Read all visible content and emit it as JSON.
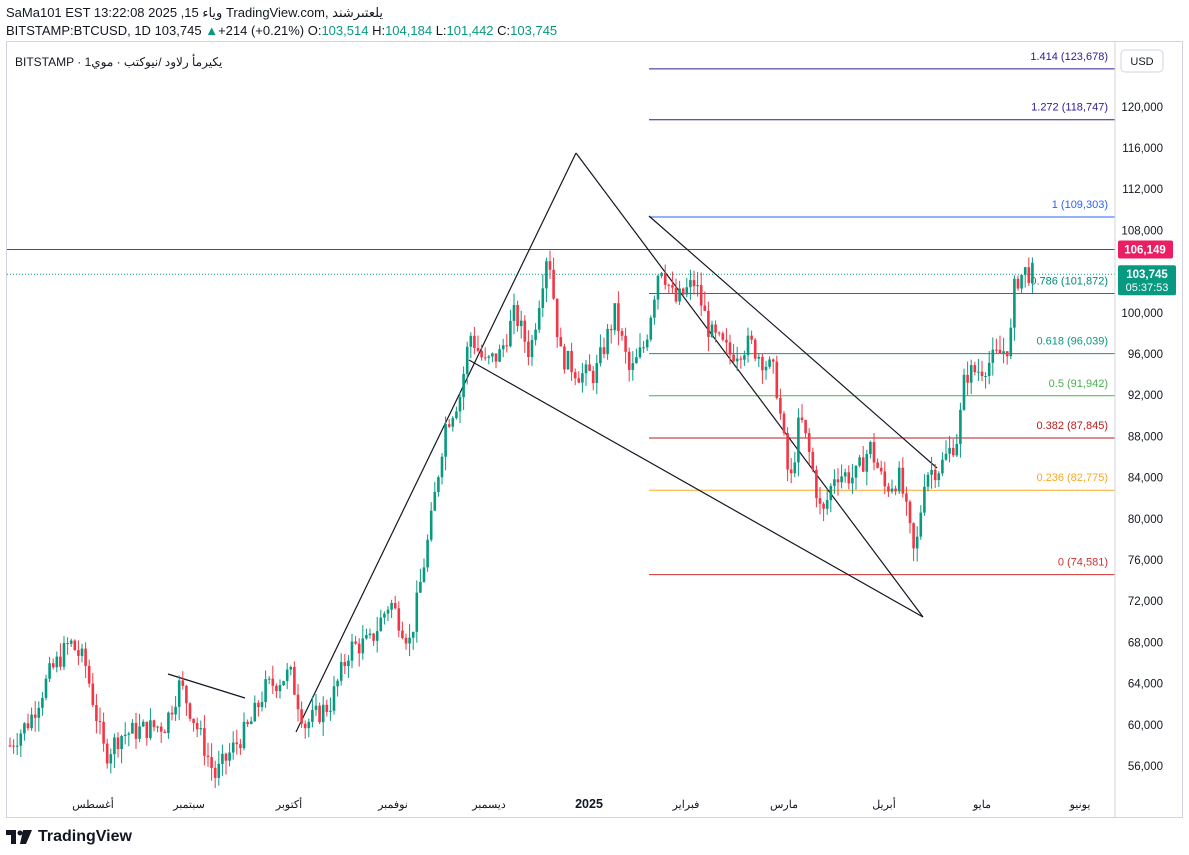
{
  "header": {
    "line1": "SaMa101 EST 13:22:08 2025 ,15 وياء TradingView.com, يلعتىرشند",
    "symbol": "BITSTAMP:BTCUSD, 1D",
    "price": "103,745",
    "change": "+214 (+0.21%)",
    "o_label": "O:",
    "o": "103,514",
    "h_label": "H:",
    "h": "104,184",
    "l_label": "L:",
    "l": "101,442",
    "c_label": "C:",
    "c": "103,745"
  },
  "legend": {
    "text": "BITSTAMP · يكيرمأ رلاود /نيوكتب · موي1"
  },
  "currency": "USD",
  "footer": {
    "brand": "TradingView"
  },
  "colors": {
    "up": "#089981",
    "down": "#f23645",
    "accent": "#e91e63"
  },
  "chart_data": {
    "type": "candlestick",
    "ylim": [
      52000,
      126000
    ],
    "y_ticks": [
      "56,000",
      "60,000",
      "64,000",
      "68,000",
      "72,000",
      "76,000",
      "80,000",
      "84,000",
      "88,000",
      "92,000",
      "96,000",
      "100,000",
      "104,000",
      "108,000",
      "112,000",
      "116,000",
      "120,000"
    ],
    "x_ticks": [
      "أغسطس",
      "سبتمبر",
      "أكتوبر",
      "نوفمبر",
      "ديسمبر",
      "2025",
      "فبراير",
      "مارس",
      "أبريل",
      "مايو",
      "يونيو"
    ],
    "last_price_label": "103,745",
    "countdown": "05:37:53",
    "alert_label": "106,149",
    "fib_levels": [
      {
        "ratio": "1.414",
        "price": 123678,
        "label": "1.414 (123,678)",
        "color": "#311b92"
      },
      {
        "ratio": "1.272",
        "price": 118747,
        "label": "1.272 (118,747)",
        "color": "#311b92"
      },
      {
        "ratio": "1",
        "price": 109303,
        "label": "1 (109,303)",
        "color": "#2962ff"
      },
      {
        "ratio": "0.786",
        "price": 101872,
        "label": "0.786 (101,872)",
        "color": "#00897b"
      },
      {
        "ratio": "0.618",
        "price": 96039,
        "label": "0.618 (96,039)",
        "color": "#089981"
      },
      {
        "ratio": "0.5",
        "price": 91942,
        "label": "0.5 (91,942)",
        "color": "#4caf50"
      },
      {
        "ratio": "0.382",
        "price": 87845,
        "label": "0.382 (87,845)",
        "color": "#b71c1c"
      },
      {
        "ratio": "0.236",
        "price": 82775,
        "label": "0.236 (82,775)",
        "color": "#f9a825"
      },
      {
        "ratio": "0",
        "price": 74581,
        "label": "0 (74,581)",
        "color": "#d32f2f"
      }
    ],
    "anchors": [
      {
        "x": 0,
        "p": 58000
      },
      {
        "x": 20,
        "p": 60500
      },
      {
        "x": 40,
        "p": 65000
      },
      {
        "x": 60,
        "p": 68000
      },
      {
        "x": 75,
        "p": 66000
      },
      {
        "x": 95,
        "p": 57000
      },
      {
        "x": 110,
        "p": 59000
      },
      {
        "x": 130,
        "p": 59500
      },
      {
        "x": 155,
        "p": 60000
      },
      {
        "x": 170,
        "p": 64000
      },
      {
        "x": 190,
        "p": 59000
      },
      {
        "x": 205,
        "p": 55000
      },
      {
        "x": 225,
        "p": 58000
      },
      {
        "x": 240,
        "p": 60000
      },
      {
        "x": 255,
        "p": 63500
      },
      {
        "x": 280,
        "p": 65000
      },
      {
        "x": 295,
        "p": 60000
      },
      {
        "x": 320,
        "p": 62000
      },
      {
        "x": 340,
        "p": 67500
      },
      {
        "x": 360,
        "p": 68000
      },
      {
        "x": 380,
        "p": 72000
      },
      {
        "x": 400,
        "p": 68000
      },
      {
        "x": 420,
        "p": 79000
      },
      {
        "x": 435,
        "p": 89000
      },
      {
        "x": 450,
        "p": 92000
      },
      {
        "x": 460,
        "p": 98000
      },
      {
        "x": 475,
        "p": 95000
      },
      {
        "x": 490,
        "p": 96000
      },
      {
        "x": 505,
        "p": 100000
      },
      {
        "x": 520,
        "p": 96000
      },
      {
        "x": 538,
        "p": 106500
      },
      {
        "x": 550,
        "p": 96000
      },
      {
        "x": 570,
        "p": 94000
      },
      {
        "x": 585,
        "p": 94000
      },
      {
        "x": 605,
        "p": 100000
      },
      {
        "x": 620,
        "p": 94000
      },
      {
        "x": 635,
        "p": 97000
      },
      {
        "x": 650,
        "p": 105000
      },
      {
        "x": 665,
        "p": 101000
      },
      {
        "x": 685,
        "p": 103000
      },
      {
        "x": 700,
        "p": 98000
      },
      {
        "x": 720,
        "p": 96000
      },
      {
        "x": 740,
        "p": 97000
      },
      {
        "x": 765,
        "p": 94000
      },
      {
        "x": 780,
        "p": 83000
      },
      {
        "x": 790,
        "p": 90000
      },
      {
        "x": 800,
        "p": 86000
      },
      {
        "x": 812,
        "p": 80000
      },
      {
        "x": 825,
        "p": 84500
      },
      {
        "x": 845,
        "p": 84000
      },
      {
        "x": 860,
        "p": 87000
      },
      {
        "x": 875,
        "p": 83000
      },
      {
        "x": 890,
        "p": 84000
      },
      {
        "x": 905,
        "p": 76000
      },
      {
        "x": 915,
        "p": 84500
      },
      {
        "x": 930,
        "p": 85000
      },
      {
        "x": 948,
        "p": 88000
      },
      {
        "x": 955,
        "p": 94000
      },
      {
        "x": 970,
        "p": 94500
      },
      {
        "x": 990,
        "p": 96000
      },
      {
        "x": 1000,
        "p": 97000
      },
      {
        "x": 1005,
        "p": 103000
      },
      {
        "x": 1015,
        "p": 104000
      },
      {
        "x": 1025,
        "p": 103745
      }
    ]
  }
}
